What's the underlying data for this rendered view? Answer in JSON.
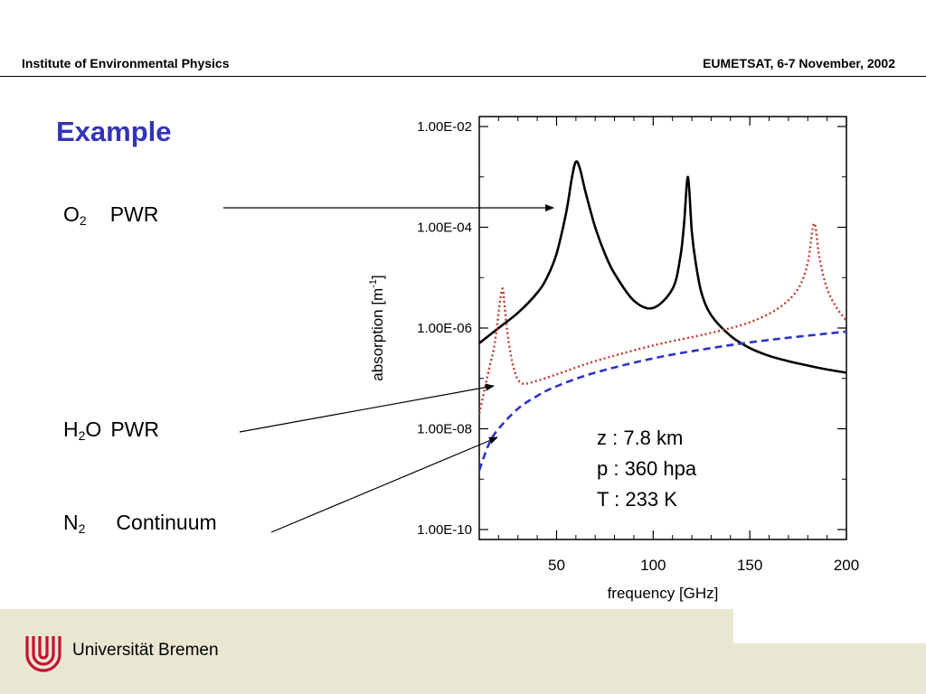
{
  "header": {
    "left": "Institute of Environmental Physics",
    "right": "EUMETSAT, 6-7 November, 2002"
  },
  "slide": {
    "title": "Example",
    "labels": {
      "o2_main": "O",
      "o2_sub": "2",
      "o2_text": "PWR",
      "h2o_pre": "H",
      "h2o_sub": "2",
      "h2o_post": "O",
      "h2o_text": "PWR",
      "n2_main": "N",
      "n2_sub": "2",
      "n2_text": "Continuum"
    }
  },
  "annotation": {
    "line1": "z : 7.8 km",
    "line2": "p : 360 hpa",
    "line3": "T : 233 K"
  },
  "footer": {
    "university": "Universität Bremen"
  },
  "colors": {
    "title": "#3333bb",
    "o2_line": "#000000",
    "h2o_line": "#c0392b",
    "n2_line": "#2a35c8",
    "footer_band": "#e8e7d2",
    "logo": "#c8102e"
  },
  "chart_data": {
    "type": "line",
    "xlabel": "frequency [GHz]",
    "ylabel": "absorption [m",
    "ylabel_sup": "-1",
    "ylabel_end": "]",
    "y_scale": "log",
    "xlim": [
      10,
      200
    ],
    "ylim": [
      1e-10,
      0.01
    ],
    "x_ticks": [
      50,
      100,
      150,
      200
    ],
    "x_tick_labels": [
      "50",
      "100",
      "150",
      "200"
    ],
    "y_ticks": [
      0.01,
      0.0001,
      1e-06,
      1e-08,
      1e-10
    ],
    "y_tick_labels": [
      "1.00E-02",
      "1.00E-04",
      "1.00E-06",
      "1.00E-08",
      "1.00E-10"
    ],
    "grid": false,
    "series": [
      {
        "key": "o2",
        "style": "solid",
        "x": [
          10,
          20,
          30,
          40,
          45,
          50,
          55,
          58,
          60,
          62,
          65,
          70,
          75,
          80,
          90,
          100,
          110,
          114,
          116,
          118,
          120,
          122,
          125,
          130,
          140,
          150,
          160,
          170,
          180,
          190,
          200
        ],
        "y": [
          5e-07,
          1e-06,
          2e-06,
          5e-06,
          1e-05,
          3e-05,
          0.0002,
          0.001,
          0.002,
          0.0015,
          0.0005,
          0.0001,
          3e-05,
          1.2e-05,
          3.5e-06,
          2.5e-06,
          6e-06,
          2.5e-05,
          0.00012,
          0.001,
          8e-05,
          2e-05,
          5e-06,
          1.8e-06,
          7e-07,
          4e-07,
          2.8e-07,
          2.2e-07,
          1.8e-07,
          1.5e-07,
          1.3e-07
        ]
      },
      {
        "key": "h2o",
        "style": "dotted",
        "x": [
          10,
          15,
          18,
          21,
          22.2,
          23,
          25,
          28,
          32,
          40,
          50,
          70,
          100,
          130,
          150,
          165,
          175,
          180,
          183.3,
          186,
          190,
          195,
          200
        ],
        "y": [
          2e-08,
          1.5e-07,
          5e-07,
          4e-06,
          6e-06,
          3e-06,
          6e-07,
          1.5e-07,
          8e-08,
          9e-08,
          1.2e-07,
          2.2e-07,
          4.5e-07,
          8e-07,
          1.3e-06,
          2.5e-06,
          6e-06,
          2e-05,
          0.00012,
          2.5e-05,
          6e-06,
          2.5e-06,
          1.4e-06
        ]
      },
      {
        "key": "n2",
        "style": "dashed",
        "x": [
          10,
          15,
          20,
          30,
          40,
          50,
          70,
          100,
          130,
          160,
          200
        ],
        "y": [
          1.5e-09,
          5e-09,
          1e-08,
          2.5e-08,
          4.5e-08,
          7e-08,
          1.3e-07,
          2.5e-07,
          4e-07,
          5.8e-07,
          8.5e-07
        ]
      }
    ]
  }
}
